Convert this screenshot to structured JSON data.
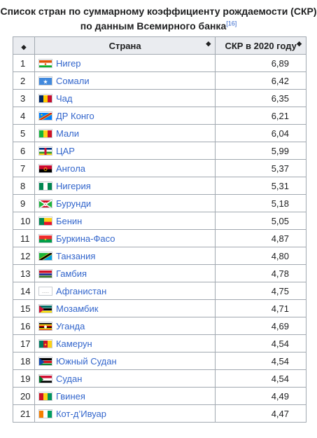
{
  "caption": {
    "line1": "Список стран по суммарному коэффициенту рождаемости (СКР)",
    "line2": "по данным Всемирного банка",
    "ref": "[16]"
  },
  "table": {
    "headers": {
      "rank_sort": "◆",
      "country": "Страна",
      "value": "СКР в 2020 году"
    },
    "rows": [
      {
        "rank": "1",
        "country": "Нигер",
        "value": "6,89",
        "flag": "niger-flag"
      },
      {
        "rank": "2",
        "country": "Сомали",
        "value": "6,42",
        "flag": "somalia-flag"
      },
      {
        "rank": "3",
        "country": "Чад",
        "value": "6,35",
        "flag": "chad-flag"
      },
      {
        "rank": "4",
        "country": "ДР Конго",
        "value": "6,21",
        "flag": "drc-flag"
      },
      {
        "rank": "5",
        "country": "Мали",
        "value": "6,04",
        "flag": "mali-flag"
      },
      {
        "rank": "6",
        "country": "ЦАР",
        "value": "5,99",
        "flag": "car-flag"
      },
      {
        "rank": "7",
        "country": "Ангола",
        "value": "5,37",
        "flag": "angola-flag"
      },
      {
        "rank": "8",
        "country": "Нигерия",
        "value": "5,31",
        "flag": "nigeria-flag"
      },
      {
        "rank": "9",
        "country": "Бурунди",
        "value": "5,18",
        "flag": "burundi-flag"
      },
      {
        "rank": "10",
        "country": "Бенин",
        "value": "5,05",
        "flag": "benin-flag"
      },
      {
        "rank": "11",
        "country": "Буркина-Фасо",
        "value": "4,87",
        "flag": "burkina-faso-flag"
      },
      {
        "rank": "12",
        "country": "Танзания",
        "value": "4,80",
        "flag": "tanzania-flag"
      },
      {
        "rank": "13",
        "country": "Гамбия",
        "value": "4,78",
        "flag": "gambia-flag"
      },
      {
        "rank": "14",
        "country": "Афганистан",
        "value": "4,75",
        "flag": "afghanistan-flag"
      },
      {
        "rank": "15",
        "country": "Мозамбик",
        "value": "4,71",
        "flag": "mozambique-flag"
      },
      {
        "rank": "16",
        "country": "Уганда",
        "value": "4,69",
        "flag": "uganda-flag"
      },
      {
        "rank": "17",
        "country": "Камерун",
        "value": "4,54",
        "flag": "cameroon-flag"
      },
      {
        "rank": "18",
        "country": "Южный Судан",
        "value": "4,54",
        "flag": "south-sudan-flag"
      },
      {
        "rank": "19",
        "country": "Судан",
        "value": "4,54",
        "flag": "sudan-flag"
      },
      {
        "rank": "20",
        "country": "Гвинея",
        "value": "4,49",
        "flag": "guinea-flag"
      },
      {
        "rank": "21",
        "country": "Кот-д’Ивуар",
        "value": "4,47",
        "flag": "ivory-coast-flag"
      }
    ]
  },
  "colors": {
    "link": "#3366cc",
    "header_bg": "#eaecf0",
    "border": "#a2a9b1"
  }
}
